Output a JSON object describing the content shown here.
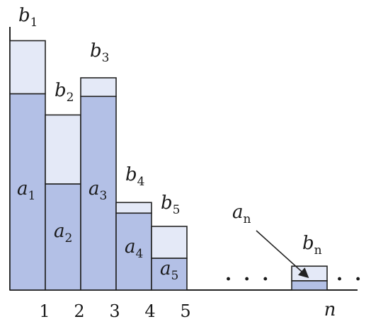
{
  "diagram": {
    "colors": {
      "a_fill": "#b3c0e6",
      "b_fill": "#e4e9f7",
      "stroke": "#222222"
    },
    "bars": [
      {
        "index": "1",
        "a_label": "a",
        "a_sub": "1",
        "b_label": "b",
        "b_sub": "1",
        "a": 0.74,
        "b": 0.2
      },
      {
        "index": "2",
        "a_label": "a",
        "a_sub": "2",
        "b_label": "b",
        "b_sub": "2",
        "a": 0.4,
        "b": 0.26
      },
      {
        "index": "3",
        "a_label": "a",
        "a_sub": "3",
        "b_label": "b",
        "b_sub": "3",
        "a": 0.73,
        "b": 0.07
      },
      {
        "index": "4",
        "a_label": "a",
        "a_sub": "4",
        "b_label": "b",
        "b_sub": "4",
        "a": 0.29,
        "b": 0.04
      },
      {
        "index": "5",
        "a_label": "a",
        "a_sub": "5",
        "b_label": "b",
        "b_sub": "5",
        "a": 0.12,
        "b": 0.12
      }
    ],
    "last_bar": {
      "index": "n",
      "a_label": "a",
      "a_sub": "n",
      "b_label": "b",
      "b_sub": "n",
      "a": 0.035,
      "b": 0.055
    },
    "ellipsis": "· · ·"
  }
}
